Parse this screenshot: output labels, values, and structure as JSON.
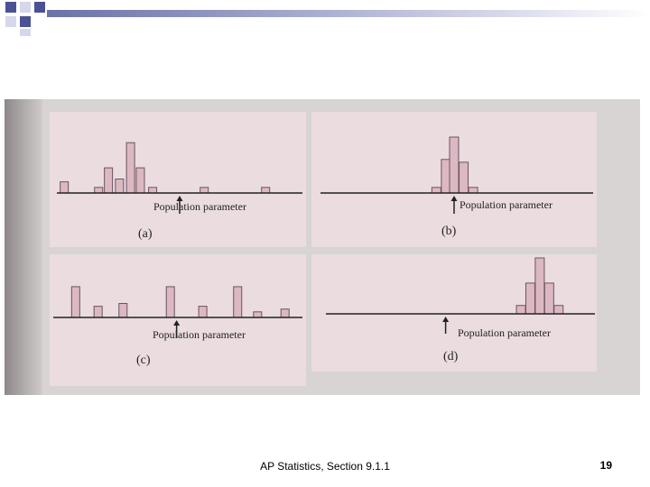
{
  "colors": {
    "corner_square": "#4a5294",
    "band_start": "#6b72a6",
    "panel_bg": "#eadcdf",
    "bar_fill": "#dcb8c2",
    "bar_stroke": "#6a5560",
    "axis": "#222222"
  },
  "figure": {
    "panels": [
      {
        "id": "a",
        "caption": "(a)",
        "param_label": "Population parameter",
        "arrow_icon": "up-arrow-icon",
        "bars": [
          {
            "pos": 0.3,
            "height": 0.2
          },
          {
            "pos": 1.7,
            "height": 0.1
          },
          {
            "pos": 2.1,
            "height": 0.45
          },
          {
            "pos": 2.55,
            "height": 0.25
          },
          {
            "pos": 3.0,
            "height": 0.9
          },
          {
            "pos": 3.4,
            "height": 0.45
          },
          {
            "pos": 3.9,
            "height": 0.1
          },
          {
            "pos": 6.0,
            "height": 0.1
          },
          {
            "pos": 8.5,
            "height": 0.1
          }
        ],
        "parameter": 5.0
      },
      {
        "id": "b",
        "caption": "(b)",
        "param_label": "Population parameter",
        "arrow_icon": "up-arrow-icon",
        "bars": [
          {
            "pos": 4.25,
            "height": 0.1
          },
          {
            "pos": 4.6,
            "height": 0.6
          },
          {
            "pos": 4.9,
            "height": 1.0
          },
          {
            "pos": 5.25,
            "height": 0.55
          },
          {
            "pos": 5.6,
            "height": 0.1
          }
        ],
        "parameter": 4.9
      },
      {
        "id": "c",
        "caption": "(c)",
        "param_label": "Population parameter",
        "arrow_icon": "up-arrow-icon",
        "bars": [
          {
            "pos": 0.9,
            "height": 0.55
          },
          {
            "pos": 1.8,
            "height": 0.2
          },
          {
            "pos": 2.8,
            "height": 0.25
          },
          {
            "pos": 4.7,
            "height": 0.55
          },
          {
            "pos": 6.0,
            "height": 0.2
          },
          {
            "pos": 7.4,
            "height": 0.55
          },
          {
            "pos": 8.2,
            "height": 0.1
          },
          {
            "pos": 9.3,
            "height": 0.15
          }
        ],
        "parameter": 4.95
      },
      {
        "id": "d",
        "caption": "(d)",
        "param_label": "Population parameter",
        "arrow_icon": "up-arrow-icon",
        "bars": [
          {
            "pos": 7.25,
            "height": 0.15
          },
          {
            "pos": 7.6,
            "height": 0.55
          },
          {
            "pos": 7.95,
            "height": 1.0
          },
          {
            "pos": 8.3,
            "height": 0.55
          },
          {
            "pos": 8.65,
            "height": 0.15
          }
        ],
        "parameter": 4.45
      }
    ]
  },
  "footer": {
    "text": "AP Statistics, Section 9.1.1",
    "page_number": "19"
  }
}
